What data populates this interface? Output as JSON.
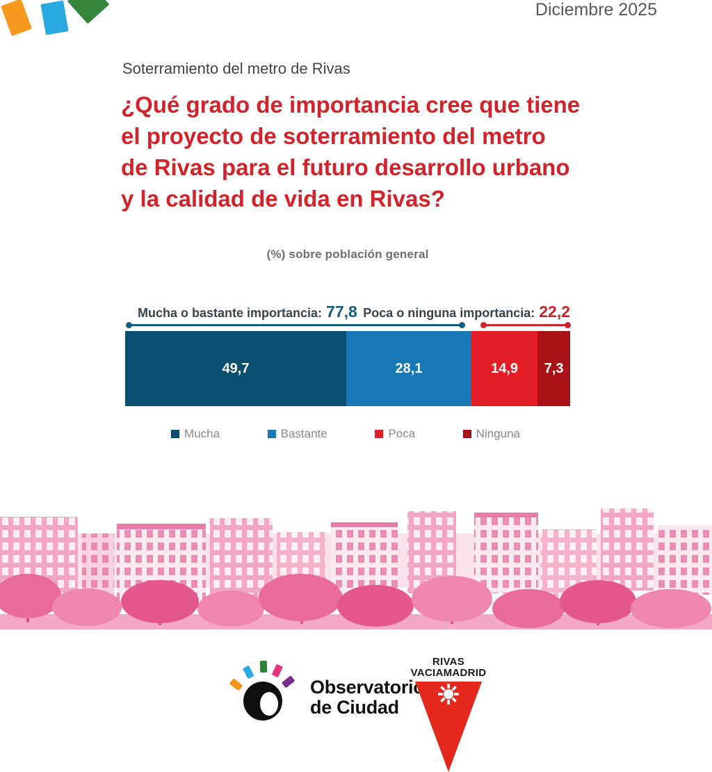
{
  "header": {
    "date": "Diciembre 2025",
    "confetti_colors": [
      "#F7981F",
      "#29A8E0",
      "#35853C"
    ]
  },
  "survey": {
    "eyebrow": "Soterramiento del metro de Rivas"
  },
  "chart_data": {
    "type": "bar",
    "stacked": true,
    "orientation": "horizontal",
    "title": "¿Qué grado de importancia cree que tiene el proyecto de soterramiento del metro de Rivas para el futuro desarrollo urbano y la calidad de vida en Rivas?",
    "title_lines": [
      "¿Qué grado de importancia cree que tiene",
      "el proyecto de soterramiento del metro",
      "de Rivas para el futuro desarrollo urbano",
      "y la calidad de vida en Rivas?"
    ],
    "subtitle": "(%) sobre población general",
    "categories": [
      "Mucha",
      "Bastante",
      "Poca",
      "Ninguna"
    ],
    "values": [
      49.7,
      28.1,
      14.9,
      7.3
    ],
    "value_labels": [
      "49,7",
      "28,1",
      "14,9",
      "7,3"
    ],
    "colors": [
      "#0B4F70",
      "#1878B5",
      "#E21D25",
      "#A91216"
    ],
    "xlim": [
      0,
      100
    ],
    "legend_position": "bottom",
    "groups": [
      {
        "label": "Mucha o bastante importancia:",
        "value": 77.8,
        "value_label": "77,8",
        "color": "#135E80"
      },
      {
        "label": "Poca o ninguna importancia:",
        "value": 22.2,
        "value_label": "22,2",
        "color": "#CC2228"
      }
    ]
  },
  "footer": {
    "observatorio": {
      "line1": "Observatorio",
      "line2": "de Ciudad"
    },
    "rivas": {
      "line1": "RIVAS",
      "line2": "VACIAMADRID"
    }
  },
  "colors": {
    "title_red": "#D2232A",
    "text_dark": "#414245",
    "text_gray": "#6D6E71",
    "legend_gray": "#87898C",
    "cityscape_pink": "#EC7AA5"
  }
}
